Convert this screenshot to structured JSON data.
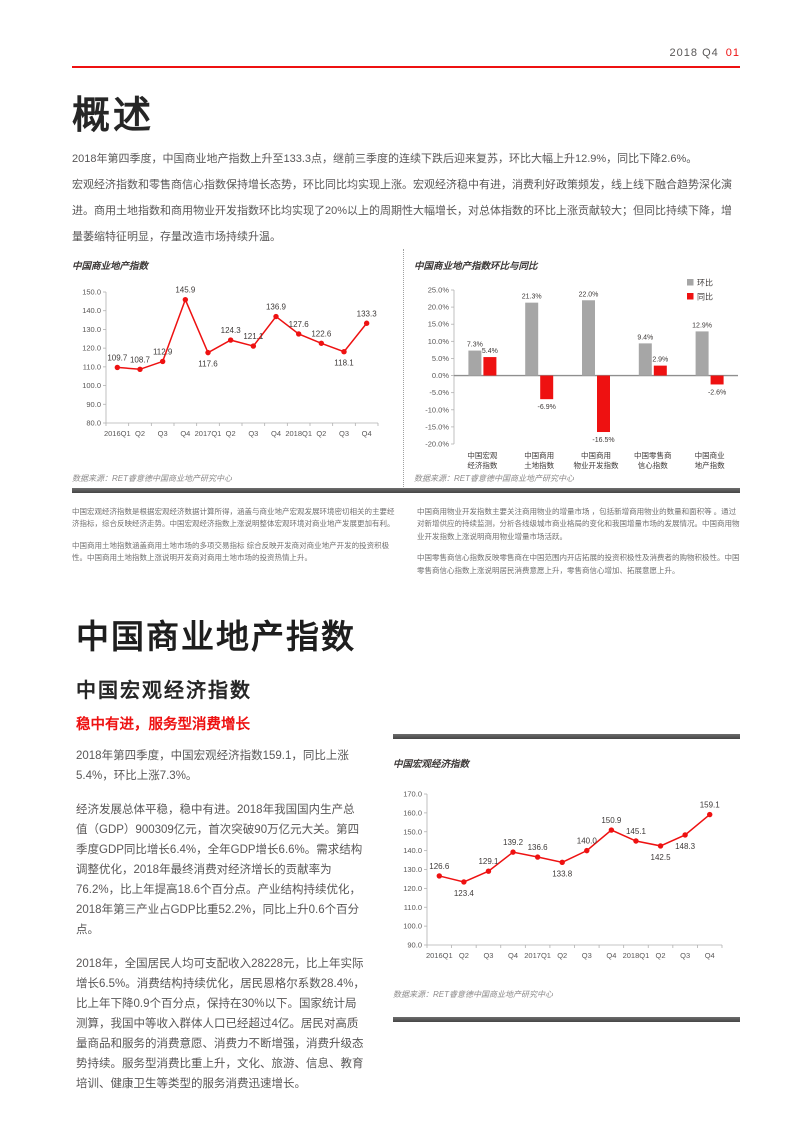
{
  "accent_color": "#ee1111",
  "header": {
    "issue": "2018 Q4",
    "page_no": "01"
  },
  "overview": {
    "title": "概述",
    "paragraphs": [
      "2018年第四季度，中国商业地产指数上升至133.3点，继前三季度的连续下跌后迎来复苏，环比大幅上升12.9%，同比下降2.6%。",
      "宏观经济指数和零售商信心指数保持增长态势，环比同比均实现上涨。宏观经济稳中有进，消费利好政策频发，线上线下融合趋势深化演进。商用土地指数和商用物业开发指数环比均实现了20%以上的周期性大幅增长，对总体指数的环比上涨贡献较大；但同比持续下降，增量萎缩特征明显，存量改造市场持续升温。"
    ]
  },
  "chart_data": [
    {
      "type": "line",
      "title": "中国商业地产指数",
      "source": "数据来源：RET睿意德中国商业地产研究中心",
      "categories": [
        "2016Q1",
        "Q2",
        "Q3",
        "Q4",
        "2017Q1",
        "Q2",
        "Q3",
        "Q4",
        "2018Q1",
        "Q2",
        "Q3",
        "Q4"
      ],
      "values": [
        109.7,
        108.7,
        112.9,
        145.9,
        117.6,
        124.3,
        121.1,
        136.9,
        127.6,
        122.6,
        118.1,
        133.3
      ],
      "ylim": [
        80,
        150
      ],
      "ytick_step": 10,
      "color": "#ee1111",
      "label_below": [
        4,
        10
      ],
      "grid": false
    },
    {
      "type": "bar",
      "title": "中国商业地产指数环比与同比",
      "source": "数据来源：RET睿意德中国商业地产研究中心",
      "categories": [
        [
          "中国宏观",
          "经济指数"
        ],
        [
          "中国商用",
          "土地指数"
        ],
        [
          "中国商用",
          "物业开发指数"
        ],
        [
          "中国零售商",
          "信心指数"
        ],
        [
          "中国商业",
          "地产指数"
        ]
      ],
      "series": [
        {
          "name": "环比",
          "color": "#a6a6a6",
          "values": [
            7.3,
            21.3,
            22.0,
            9.4,
            12.9
          ]
        },
        {
          "name": "同比",
          "color": "#ee1111",
          "values": [
            5.4,
            -6.9,
            -16.5,
            2.9,
            -2.6
          ]
        }
      ],
      "ylim": [
        -20,
        25
      ],
      "ytick_step": 5,
      "legend_position": "top-right",
      "grid": false
    },
    {
      "type": "line",
      "title": "中国宏观经济指数",
      "source": "数据来源：RET睿意德中国商业地产研究中心",
      "categories": [
        "2016Q1",
        "Q2",
        "Q3",
        "Q4",
        "2017Q1",
        "Q2",
        "Q3",
        "Q4",
        "2018Q1",
        "Q2",
        "Q3",
        "Q4"
      ],
      "values": [
        126.6,
        123.4,
        129.1,
        139.2,
        136.6,
        133.8,
        140.0,
        150.9,
        145.1,
        142.5,
        148.3,
        159.1
      ],
      "ylim": [
        90,
        170
      ],
      "ytick_step": 10,
      "color": "#ee1111",
      "label_below": [
        1,
        5,
        9,
        10
      ],
      "grid": false
    }
  ],
  "footnotes": {
    "left": [
      "中国宏观经济指数是根据宏观经济数据计算所得，涵盖与商业地产宏观发展环境密切相关的主要经济指标，综合反映经济走势。中国宏观经济指数上涨说明整体宏观环境对商业地产发展更加有利。",
      "中国商用土地指数涵盖商用土地市场的多项交易指标  综合反映开发商对商业地产开发的投资积极性。中国商用土地指数上涨说明开发商对商用土地市场的投资热情上升。"
    ],
    "right": [
      "中国商用物业开发指数主要关注商用物业的增量市场 ，包括新增商用物业的数量和面积等 。通过对新增供应的持续监测，分析各线级城市商业格局的变化和我国增量市场的发展情况。中国商用物业开发指数上涨说明商用物业增量市场活跃。",
      "中国零售商信心指数反映零售商在中国范围内开店拓展的投资积极性及消费者的购物积极性。中国零售商信心指数上涨说明居民消费意愿上升，零售商信心增加、拓展意愿上升。"
    ]
  },
  "section": {
    "title": "中国商业地产指数",
    "subtitle": "中国宏观经济指数",
    "highlight": "稳中有进，服务型消费增长",
    "paragraphs": [
      "2018年第四季度，中国宏观经济指数159.1，同比上涨5.4%，环比上涨7.3%。",
      "经济发展总体平稳，稳中有进。2018年我国国内生产总值（GDP）900309亿元，首次突破90万亿元大关。第四季度GDP同比增长6.4%，全年GDP增长6.6%。需求结构调整优化，2018年最终消费对经济增长的贡献率为76.2%，比上年提高18.6个百分点。产业结构持续优化，2018年第三产业占GDP比重52.2%，同比上升0.6个百分点。",
      "2018年，全国居民人均可支配收入28228元，比上年实际增长6.5%。消费结构持续优化，居民恩格尔系数28.4%，比上年下降0.9个百分点，保持在30%以下。国家统计局测算，我国中等收入群体人口已经超过4亿。居民对高质量商品和服务的消费意愿、消费力不断增强，消费升级态势持续。服务型消费比重上升，文化、旅游、信息、教育培训、健康卫生等类型的服务消费迅速增长。"
    ]
  }
}
